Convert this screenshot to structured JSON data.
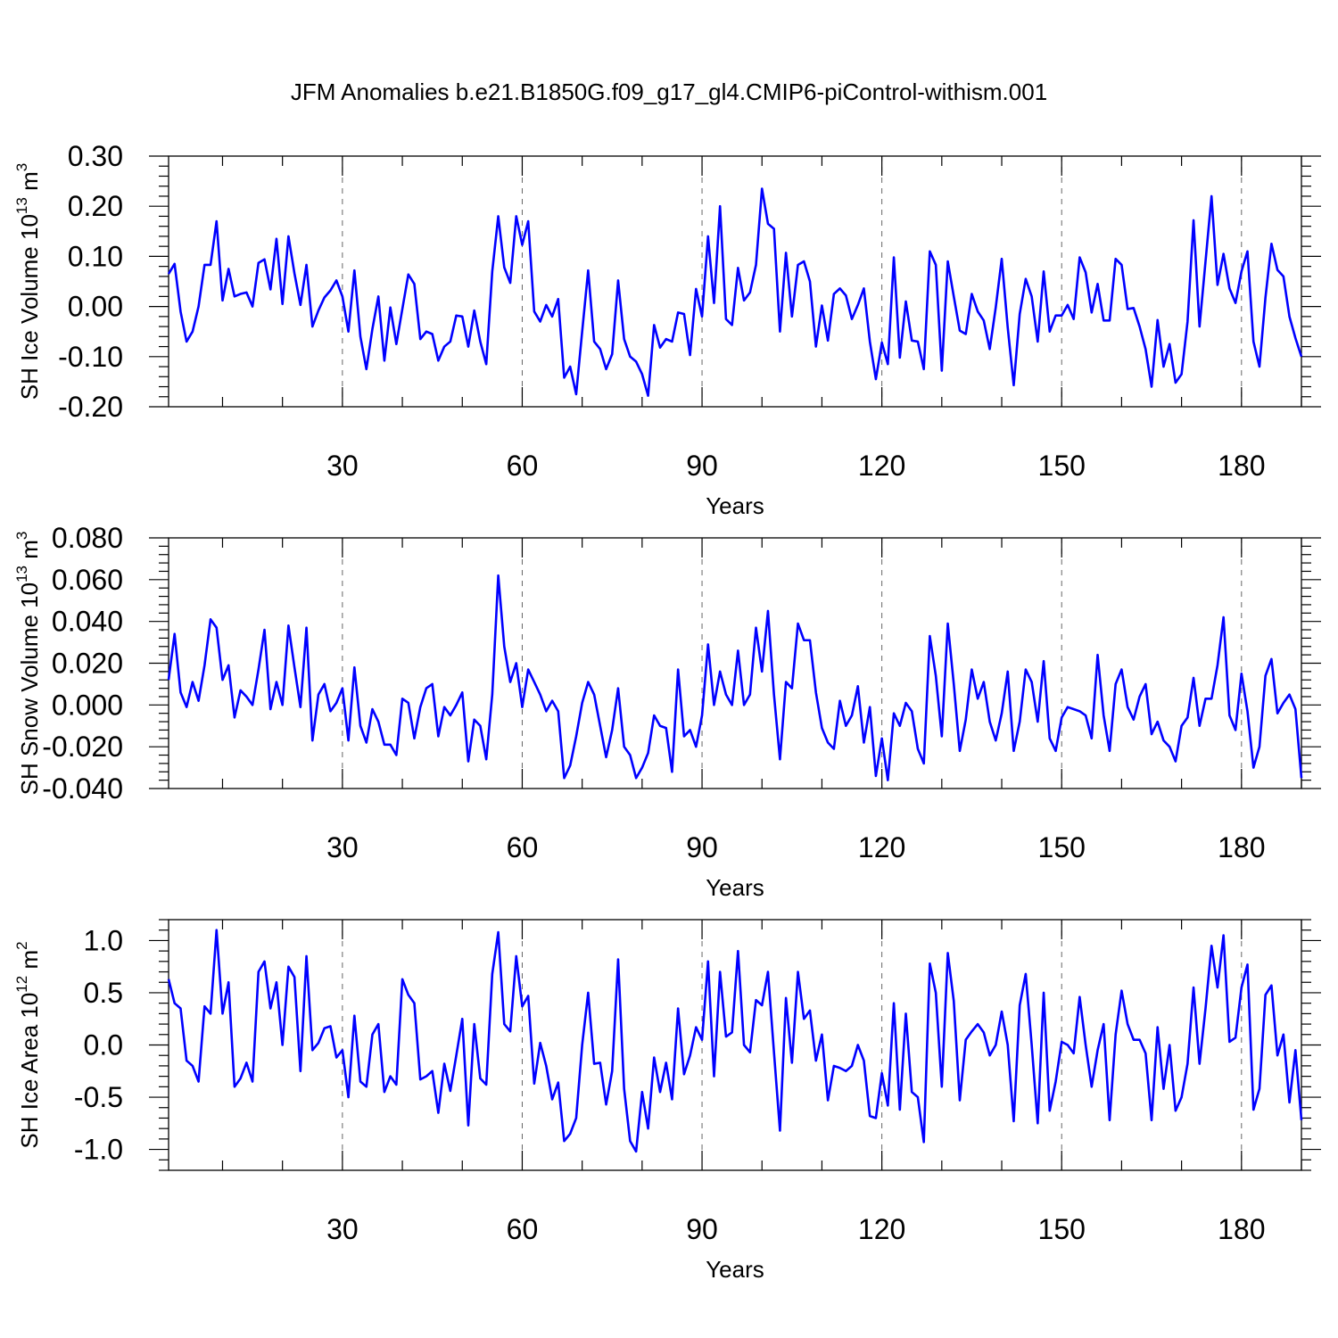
{
  "figure_title": "JFM Anomalies b.e21.B1850G.f09_g17_gl4.CMIP6-piControl-withism.001",
  "chart_data": [
    {
      "type": "line",
      "ylabel": "SH Ice Volume 10^13 m^3",
      "ylabel_main": "SH Ice Volume 10",
      "ylabel_exp": "13",
      "ylabel_unit": " m",
      "ylabel_unit_exp": "3",
      "xlabel": "Years",
      "xlim": [
        1,
        190
      ],
      "ylim": [
        -0.2,
        0.3
      ],
      "x_ticks": [
        30,
        60,
        90,
        120,
        150,
        180
      ],
      "x_tick_labels": [
        "30",
        "60",
        "90",
        "120",
        "150",
        "180"
      ],
      "y_ticks": [
        -0.2,
        -0.1,
        0.0,
        0.1,
        0.2,
        0.3
      ],
      "y_tick_labels": [
        "-0.20",
        "-0.10",
        "0.00",
        "0.10",
        "0.20",
        "0.30"
      ],
      "grid": "dashed vertical lines at x ticks",
      "series": [
        {
          "name": "SH Ice Volume",
          "color": "#0000ff",
          "x_start": 1,
          "values": [
            0.065,
            0.085,
            -0.01,
            -0.07,
            -0.05,
            0.0,
            0.083,
            0.083,
            0.17,
            0.012,
            0.075,
            0.02,
            0.025,
            0.028,
            0.0,
            0.087,
            0.094,
            0.034,
            0.135,
            0.005,
            0.14,
            0.066,
            0.003,
            0.083,
            -0.04,
            -0.008,
            0.018,
            0.032,
            0.052,
            0.02,
            -0.05,
            0.072,
            -0.06,
            -0.125,
            -0.045,
            0.02,
            -0.108,
            -0.002,
            -0.075,
            -0.005,
            0.064,
            0.045,
            -0.065,
            -0.05,
            -0.055,
            -0.108,
            -0.08,
            -0.07,
            -0.018,
            -0.02,
            -0.08,
            -0.008,
            -0.07,
            -0.115,
            0.07,
            0.18,
            0.078,
            0.047,
            0.18,
            0.123,
            0.17,
            -0.01,
            -0.03,
            0.003,
            -0.02,
            0.015,
            -0.142,
            -0.12,
            -0.175,
            -0.05,
            0.072,
            -0.07,
            -0.085,
            -0.125,
            -0.095,
            0.052,
            -0.065,
            -0.1,
            -0.11,
            -0.135,
            -0.178,
            -0.037,
            -0.082,
            -0.065,
            -0.07,
            -0.012,
            -0.015,
            -0.097,
            0.035,
            -0.02,
            0.14,
            0.007,
            0.2,
            -0.025,
            -0.037,
            0.077,
            0.012,
            0.028,
            0.083,
            0.235,
            0.165,
            0.155,
            -0.05,
            0.107,
            -0.02,
            0.083,
            0.09,
            0.05,
            -0.08,
            0.002,
            -0.068,
            0.025,
            0.036,
            0.022,
            -0.025,
            0.003,
            0.036,
            -0.07,
            -0.145,
            -0.072,
            -0.115,
            0.098,
            -0.102,
            0.01,
            -0.068,
            -0.07,
            -0.125,
            0.11,
            0.083,
            -0.128,
            0.09,
            0.02,
            -0.048,
            -0.055,
            0.025,
            -0.01,
            -0.028,
            -0.085,
            -0.002,
            0.095,
            -0.042,
            -0.157,
            -0.015,
            0.055,
            0.02,
            -0.07,
            0.07,
            -0.05,
            -0.018,
            -0.018,
            0.003,
            -0.025,
            0.098,
            0.068,
            -0.012,
            0.045,
            -0.028,
            -0.028,
            0.095,
            0.083,
            -0.005,
            -0.003,
            -0.04,
            -0.085,
            -0.16,
            -0.027,
            -0.12,
            -0.075,
            -0.152,
            -0.135,
            -0.03,
            0.172,
            -0.04,
            0.09,
            0.22,
            0.043,
            0.105,
            0.036,
            0.007,
            0.07,
            0.11,
            -0.07,
            -0.12,
            0.018,
            0.125,
            0.073,
            0.06,
            -0.02,
            -0.063,
            -0.1
          ]
        }
      ]
    },
    {
      "type": "line",
      "ylabel": "SH Snow Volume 10^13 m^3",
      "ylabel_main": "SH Snow Volume 10",
      "ylabel_exp": "13",
      "ylabel_unit": " m",
      "ylabel_unit_exp": "3",
      "xlabel": "Years",
      "xlim": [
        1,
        190
      ],
      "ylim": [
        -0.04,
        0.08
      ],
      "x_ticks": [
        30,
        60,
        90,
        120,
        150,
        180
      ],
      "x_tick_labels": [
        "30",
        "60",
        "90",
        "120",
        "150",
        "180"
      ],
      "y_ticks": [
        -0.04,
        -0.02,
        0.0,
        0.02,
        0.04,
        0.06,
        0.08
      ],
      "y_tick_labels": [
        "-0.040",
        "-0.020",
        "0.000",
        "0.020",
        "0.040",
        "0.060",
        "0.080"
      ],
      "grid": "dashed vertical lines at x ticks",
      "series": [
        {
          "name": "SH Snow Volume",
          "color": "#0000ff",
          "x_start": 1,
          "values": [
            0.012,
            0.034,
            0.006,
            -0.001,
            0.011,
            0.002,
            0.019,
            0.041,
            0.037,
            0.012,
            0.019,
            -0.006,
            0.007,
            0.004,
            0.0,
            0.017,
            0.036,
            -0.002,
            0.011,
            0.0,
            0.038,
            0.018,
            -0.001,
            0.037,
            -0.017,
            0.005,
            0.01,
            -0.003,
            0.001,
            0.008,
            -0.017,
            0.018,
            -0.01,
            -0.018,
            -0.002,
            -0.008,
            -0.019,
            -0.019,
            -0.024,
            0.003,
            0.001,
            -0.016,
            -0.001,
            0.008,
            0.01,
            -0.015,
            -0.001,
            -0.005,
            0.0,
            0.006,
            -0.027,
            -0.007,
            -0.01,
            -0.026,
            0.005,
            0.062,
            0.028,
            0.011,
            0.02,
            -0.001,
            0.017,
            0.011,
            0.005,
            -0.003,
            0.002,
            -0.003,
            -0.035,
            -0.029,
            -0.015,
            0.001,
            0.011,
            0.005,
            -0.01,
            -0.025,
            -0.012,
            0.008,
            -0.02,
            -0.024,
            -0.035,
            -0.03,
            -0.023,
            -0.005,
            -0.01,
            -0.011,
            -0.032,
            0.017,
            -0.015,
            -0.012,
            -0.02,
            -0.005,
            0.029,
            0.0,
            0.016,
            0.005,
            0.0,
            0.026,
            0.0,
            0.005,
            0.037,
            0.016,
            0.045,
            0.005,
            -0.026,
            0.011,
            0.008,
            0.039,
            0.031,
            0.031,
            0.006,
            -0.011,
            -0.018,
            -0.021,
            0.002,
            -0.01,
            -0.005,
            0.009,
            -0.018,
            -0.001,
            -0.034,
            -0.016,
            -0.036,
            -0.004,
            -0.01,
            0.001,
            -0.003,
            -0.021,
            -0.028,
            0.033,
            0.014,
            -0.015,
            0.039,
            0.01,
            -0.022,
            -0.007,
            0.017,
            0.003,
            0.011,
            -0.008,
            -0.017,
            -0.004,
            0.016,
            -0.022,
            -0.008,
            0.017,
            0.011,
            -0.008,
            0.021,
            -0.016,
            -0.022,
            -0.006,
            -0.001,
            -0.002,
            -0.003,
            -0.005,
            -0.016,
            0.024,
            -0.005,
            -0.022,
            0.01,
            0.017,
            -0.001,
            -0.007,
            0.004,
            0.01,
            -0.014,
            -0.008,
            -0.017,
            -0.02,
            -0.027,
            -0.01,
            -0.006,
            0.013,
            -0.01,
            0.003,
            0.003,
            0.019,
            0.042,
            -0.005,
            -0.012,
            0.015,
            -0.003,
            -0.03,
            -0.02,
            0.014,
            0.022,
            -0.004,
            0.001,
            0.005,
            -0.002,
            -0.035
          ]
        }
      ]
    },
    {
      "type": "line",
      "ylabel": "SH Ice Area 10^12 m^2",
      "ylabel_main": "SH Ice Area 10",
      "ylabel_exp": "12",
      "ylabel_unit": " m",
      "ylabel_unit_exp": "2",
      "xlabel": "Years",
      "xlim": [
        1,
        190
      ],
      "ylim": [
        -1.2,
        1.2
      ],
      "x_ticks": [
        30,
        60,
        90,
        120,
        150,
        180
      ],
      "x_tick_labels": [
        "30",
        "60",
        "90",
        "120",
        "150",
        "180"
      ],
      "y_ticks": [
        -1.0,
        -0.5,
        0.0,
        0.5,
        1.0
      ],
      "y_tick_labels": [
        "-1.0",
        "-0.5",
        "0.0",
        "0.5",
        "1.0"
      ],
      "grid": "dashed vertical lines at x ticks",
      "series": [
        {
          "name": "SH Ice Area",
          "color": "#0000ff",
          "x_start": 1,
          "values": [
            0.63,
            0.4,
            0.35,
            -0.15,
            -0.2,
            -0.35,
            0.37,
            0.3,
            1.1,
            0.3,
            0.6,
            -0.4,
            -0.32,
            -0.17,
            -0.35,
            0.7,
            0.8,
            0.35,
            0.6,
            0.0,
            0.75,
            0.65,
            -0.25,
            0.85,
            -0.05,
            0.02,
            0.16,
            0.18,
            -0.12,
            -0.05,
            -0.5,
            0.28,
            -0.35,
            -0.4,
            0.1,
            0.2,
            -0.45,
            -0.3,
            -0.38,
            0.63,
            0.48,
            0.4,
            -0.33,
            -0.3,
            -0.25,
            -0.65,
            -0.18,
            -0.44,
            -0.1,
            0.25,
            -0.77,
            0.2,
            -0.32,
            -0.38,
            0.68,
            1.08,
            0.2,
            0.13,
            0.85,
            0.37,
            0.47,
            -0.37,
            0.02,
            -0.2,
            -0.52,
            -0.36,
            -0.92,
            -0.85,
            -0.7,
            0.0,
            0.5,
            -0.18,
            -0.17,
            -0.57,
            -0.25,
            0.82,
            -0.42,
            -0.92,
            -1.02,
            -0.45,
            -0.8,
            -0.12,
            -0.45,
            -0.17,
            -0.52,
            0.35,
            -0.28,
            -0.1,
            0.17,
            0.05,
            0.8,
            -0.3,
            0.7,
            0.08,
            0.12,
            0.9,
            0.0,
            -0.07,
            0.43,
            0.38,
            0.7,
            -0.07,
            -0.82,
            0.45,
            -0.17,
            0.7,
            0.25,
            0.33,
            -0.15,
            0.1,
            -0.53,
            -0.2,
            -0.22,
            -0.25,
            -0.2,
            0.0,
            -0.15,
            -0.68,
            -0.7,
            -0.27,
            -0.58,
            0.4,
            -0.62,
            0.3,
            -0.45,
            -0.5,
            -0.93,
            0.78,
            0.5,
            -0.4,
            0.88,
            0.42,
            -0.53,
            0.05,
            0.13,
            0.2,
            0.12,
            -0.1,
            0.0,
            0.32,
            0.0,
            -0.73,
            0.38,
            0.68,
            0.0,
            -0.75,
            0.5,
            -0.63,
            -0.35,
            0.03,
            0.0,
            -0.08,
            0.46,
            0.0,
            -0.4,
            -0.05,
            0.2,
            -0.72,
            0.1,
            0.52,
            0.2,
            0.05,
            0.05,
            -0.08,
            -0.72,
            0.17,
            -0.42,
            0.0,
            -0.63,
            -0.5,
            -0.18,
            0.55,
            -0.18,
            0.35,
            0.95,
            0.55,
            1.05,
            0.03,
            0.07,
            0.55,
            0.77,
            -0.62,
            -0.42,
            0.48,
            0.57,
            -0.1,
            0.1,
            -0.55,
            -0.05,
            -0.72
          ]
        }
      ]
    }
  ]
}
